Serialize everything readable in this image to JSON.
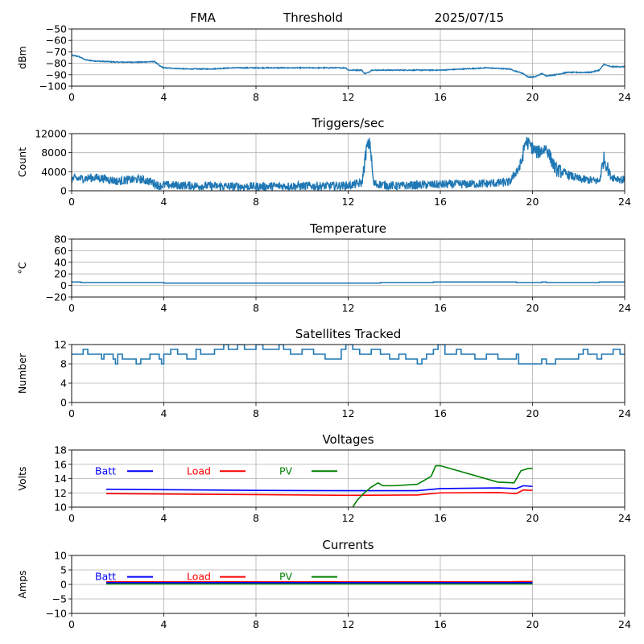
{
  "header": {
    "left": "FMA",
    "center": "Threshold",
    "right": "2025/07/15"
  },
  "colors": {
    "series": "#1f77b4",
    "batt": "#0000ff",
    "load": "#ff0000",
    "pv": "#008000",
    "grid": "#b0b0b0"
  },
  "chart_data": [
    {
      "id": "signal",
      "type": "line",
      "title": "",
      "ylabel": "dBm",
      "xlim": [
        0,
        24
      ],
      "xticks": [
        0,
        4,
        8,
        12,
        16,
        20,
        24
      ],
      "ylim": [
        -100,
        -50
      ],
      "yticks": [
        -100,
        -90,
        -80,
        -70,
        -60,
        -50
      ],
      "series": [
        {
          "color": "#1f77b4",
          "noise": 0.4,
          "points": [
            [
              0,
              -73
            ],
            [
              0.3,
              -74
            ],
            [
              0.6,
              -77
            ],
            [
              1,
              -78
            ],
            [
              2,
              -79
            ],
            [
              3,
              -79
            ],
            [
              3.6,
              -78.5
            ],
            [
              3.8,
              -82
            ],
            [
              4,
              -84
            ],
            [
              5,
              -85
            ],
            [
              6,
              -85
            ],
            [
              7,
              -84
            ],
            [
              8,
              -84
            ],
            [
              9,
              -84
            ],
            [
              10,
              -84
            ],
            [
              11,
              -84
            ],
            [
              11.9,
              -84
            ],
            [
              12,
              -86
            ],
            [
              12.6,
              -86
            ],
            [
              12.7,
              -89
            ],
            [
              12.9,
              -88
            ],
            [
              13,
              -86
            ],
            [
              14,
              -86
            ],
            [
              15,
              -86
            ],
            [
              16,
              -86
            ],
            [
              17,
              -85
            ],
            [
              18,
              -84
            ],
            [
              19,
              -85
            ],
            [
              19.6,
              -89
            ],
            [
              19.8,
              -92
            ],
            [
              20.1,
              -92
            ],
            [
              20.4,
              -89
            ],
            [
              20.6,
              -91
            ],
            [
              21,
              -90
            ],
            [
              21.5,
              -88
            ],
            [
              22,
              -88
            ],
            [
              22.5,
              -88
            ],
            [
              22.9,
              -86
            ],
            [
              23.1,
              -81
            ],
            [
              23.4,
              -83
            ],
            [
              24,
              -83
            ]
          ]
        }
      ]
    },
    {
      "id": "triggers",
      "type": "line",
      "title": "Triggers/sec",
      "ylabel": "Count",
      "xlim": [
        0,
        24
      ],
      "xticks": [
        0,
        4,
        8,
        12,
        16,
        20,
        24
      ],
      "ylim": [
        0,
        12000
      ],
      "yticks": [
        0,
        4000,
        8000,
        12000
      ],
      "series": [
        {
          "color": "#1f77b4",
          "noise": 900,
          "points": [
            [
              0,
              2500
            ],
            [
              0.5,
              2600
            ],
            [
              1,
              2800
            ],
            [
              1.5,
              2500
            ],
            [
              2,
              2000
            ],
            [
              2.5,
              2300
            ],
            [
              3,
              2400
            ],
            [
              3.5,
              1800
            ],
            [
              3.8,
              1000
            ],
            [
              4,
              1200
            ],
            [
              5,
              1100
            ],
            [
              6,
              1000
            ],
            [
              7,
              900
            ],
            [
              8,
              900
            ],
            [
              9,
              1000
            ],
            [
              10,
              1000
            ],
            [
              11,
              1000
            ],
            [
              12,
              1100
            ],
            [
              12.6,
              1600
            ],
            [
              12.8,
              9000
            ],
            [
              12.95,
              10000
            ],
            [
              13.1,
              1500
            ],
            [
              14,
              1000
            ],
            [
              15,
              1200
            ],
            [
              16,
              1300
            ],
            [
              17,
              1400
            ],
            [
              18,
              1500
            ],
            [
              19,
              1800
            ],
            [
              19.5,
              5500
            ],
            [
              19.7,
              10500
            ],
            [
              19.9,
              9500
            ],
            [
              20.2,
              8000
            ],
            [
              20.6,
              9000
            ],
            [
              21,
              4500
            ],
            [
              22,
              2500
            ],
            [
              22.9,
              2000
            ],
            [
              23.1,
              6800
            ],
            [
              23.4,
              3000
            ],
            [
              24,
              2200
            ]
          ]
        }
      ]
    },
    {
      "id": "temperature",
      "type": "line",
      "title": "Temperature",
      "ylabel": "°C",
      "xlim": [
        0,
        24
      ],
      "xticks": [
        0,
        4,
        8,
        12,
        16,
        20,
        24
      ],
      "ylim": [
        -20,
        80
      ],
      "yticks": [
        -20,
        0,
        20,
        40,
        60,
        80
      ],
      "series": [
        {
          "color": "#1f77b4",
          "step": true,
          "points": [
            [
              0,
              6
            ],
            [
              0.4,
              5
            ],
            [
              4,
              4
            ],
            [
              13.4,
              5
            ],
            [
              15.7,
              6
            ],
            [
              19.3,
              5
            ],
            [
              20.4,
              6
            ],
            [
              20.6,
              5
            ],
            [
              22.9,
              6
            ],
            [
              24,
              6
            ]
          ]
        }
      ]
    },
    {
      "id": "satellites",
      "type": "line",
      "title": "Satellites Tracked",
      "ylabel": "Number",
      "xlim": [
        0,
        24
      ],
      "xticks": [
        0,
        4,
        8,
        12,
        16,
        20,
        24
      ],
      "ylim": [
        0,
        12
      ],
      "yticks": [
        0,
        4,
        8,
        12
      ],
      "series": [
        {
          "color": "#1f77b4",
          "step": true,
          "points": [
            [
              0,
              10
            ],
            [
              0.5,
              11
            ],
            [
              0.7,
              10
            ],
            [
              1.3,
              9
            ],
            [
              1.4,
              10
            ],
            [
              1.8,
              9
            ],
            [
              1.9,
              8
            ],
            [
              2,
              10
            ],
            [
              2.2,
              9
            ],
            [
              2.4,
              9
            ],
            [
              2.8,
              8
            ],
            [
              3,
              9
            ],
            [
              3.4,
              10
            ],
            [
              3.8,
              9
            ],
            [
              3.9,
              8
            ],
            [
              4,
              10
            ],
            [
              4.3,
              11
            ],
            [
              4.6,
              10
            ],
            [
              5,
              9
            ],
            [
              5.4,
              11
            ],
            [
              5.6,
              10
            ],
            [
              6.2,
              11
            ],
            [
              6.6,
              12
            ],
            [
              6.8,
              11
            ],
            [
              7.2,
              12
            ],
            [
              7.5,
              11
            ],
            [
              8,
              12
            ],
            [
              8.3,
              11
            ],
            [
              9,
              12
            ],
            [
              9.2,
              11
            ],
            [
              9.5,
              10
            ],
            [
              10,
              11
            ],
            [
              10.5,
              10
            ],
            [
              11,
              9
            ],
            [
              11.7,
              11
            ],
            [
              11.9,
              12
            ],
            [
              12.2,
              11
            ],
            [
              12.5,
              10
            ],
            [
              13,
              11
            ],
            [
              13.4,
              10
            ],
            [
              13.8,
              9
            ],
            [
              14.2,
              10
            ],
            [
              14.5,
              9
            ],
            [
              15,
              8
            ],
            [
              15.2,
              9
            ],
            [
              15.4,
              10
            ],
            [
              15.7,
              11
            ],
            [
              15.9,
              12
            ],
            [
              16.2,
              10
            ],
            [
              16.7,
              11
            ],
            [
              16.9,
              10
            ],
            [
              17.5,
              9
            ],
            [
              18,
              10
            ],
            [
              18.5,
              9
            ],
            [
              19.3,
              10
            ],
            [
              19.4,
              8
            ],
            [
              20.4,
              9
            ],
            [
              20.6,
              8
            ],
            [
              21,
              9
            ],
            [
              22,
              10
            ],
            [
              22.2,
              11
            ],
            [
              22.4,
              10
            ],
            [
              22.8,
              9
            ],
            [
              23,
              10
            ],
            [
              23.5,
              11
            ],
            [
              23.8,
              10
            ],
            [
              24,
              10
            ]
          ]
        }
      ]
    },
    {
      "id": "voltages",
      "type": "line",
      "title": "Voltages",
      "ylabel": "Volts",
      "xlim": [
        0,
        24
      ],
      "xticks": [
        0,
        4,
        8,
        12,
        16,
        20,
        24
      ],
      "ylim": [
        10,
        18
      ],
      "yticks": [
        10,
        12,
        14,
        16,
        18
      ],
      "legend": [
        {
          "label": "Batt",
          "color": "#0000ff"
        },
        {
          "label": "Load",
          "color": "#ff0000"
        },
        {
          "label": "PV",
          "color": "#008000"
        }
      ],
      "series": [
        {
          "name": "Batt",
          "color": "#0000ff",
          "points": [
            [
              1.5,
              12.5
            ],
            [
              8,
              12.35
            ],
            [
              12,
              12.3
            ],
            [
              15,
              12.3
            ],
            [
              16,
              12.6
            ],
            [
              18.5,
              12.7
            ],
            [
              19.3,
              12.6
            ],
            [
              19.6,
              13.0
            ],
            [
              20,
              12.9
            ]
          ]
        },
        {
          "name": "Load",
          "color": "#ff0000",
          "points": [
            [
              1.5,
              11.9
            ],
            [
              8,
              11.75
            ],
            [
              12,
              11.65
            ],
            [
              15,
              11.7
            ],
            [
              16,
              12.0
            ],
            [
              18.5,
              12.05
            ],
            [
              19.3,
              11.9
            ],
            [
              19.6,
              12.4
            ],
            [
              20,
              12.35
            ]
          ]
        },
        {
          "name": "PV",
          "color": "#008000",
          "points": [
            [
              12.2,
              10.0
            ],
            [
              12.4,
              11.0
            ],
            [
              12.7,
              12.0
            ],
            [
              13,
              12.8
            ],
            [
              13.3,
              13.4
            ],
            [
              13.5,
              13.0
            ],
            [
              14,
              13.0
            ],
            [
              15,
              13.2
            ],
            [
              15.6,
              14.3
            ],
            [
              15.8,
              15.8
            ],
            [
              16,
              15.8
            ],
            [
              18.5,
              13.5
            ],
            [
              19.2,
              13.4
            ],
            [
              19.5,
              15.1
            ],
            [
              19.8,
              15.4
            ],
            [
              20,
              15.4
            ]
          ]
        }
      ]
    },
    {
      "id": "currents",
      "type": "line",
      "title": "Currents",
      "ylabel": "Amps",
      "xlim": [
        0,
        24
      ],
      "xticks": [
        0,
        4,
        8,
        12,
        16,
        20,
        24
      ],
      "ylim": [
        -10,
        10
      ],
      "yticks": [
        -10,
        -5,
        0,
        5,
        10
      ],
      "legend": [
        {
          "label": "Batt",
          "color": "#0000ff"
        },
        {
          "label": "Load",
          "color": "#ff0000"
        },
        {
          "label": "PV",
          "color": "#008000"
        }
      ],
      "series": [
        {
          "name": "Load",
          "color": "#ff0000",
          "points": [
            [
              1.5,
              0.9
            ],
            [
              19,
              0.9
            ],
            [
              19.5,
              1.0
            ],
            [
              20,
              1.0
            ]
          ]
        },
        {
          "name": "PV",
          "color": "#008000",
          "points": [
            [
              1.5,
              0.2
            ],
            [
              20,
              0.2
            ]
          ]
        },
        {
          "name": "Batt",
          "color": "#0000ff",
          "points": [
            [
              1.5,
              0.6
            ],
            [
              20,
              0.6
            ]
          ]
        }
      ]
    }
  ]
}
